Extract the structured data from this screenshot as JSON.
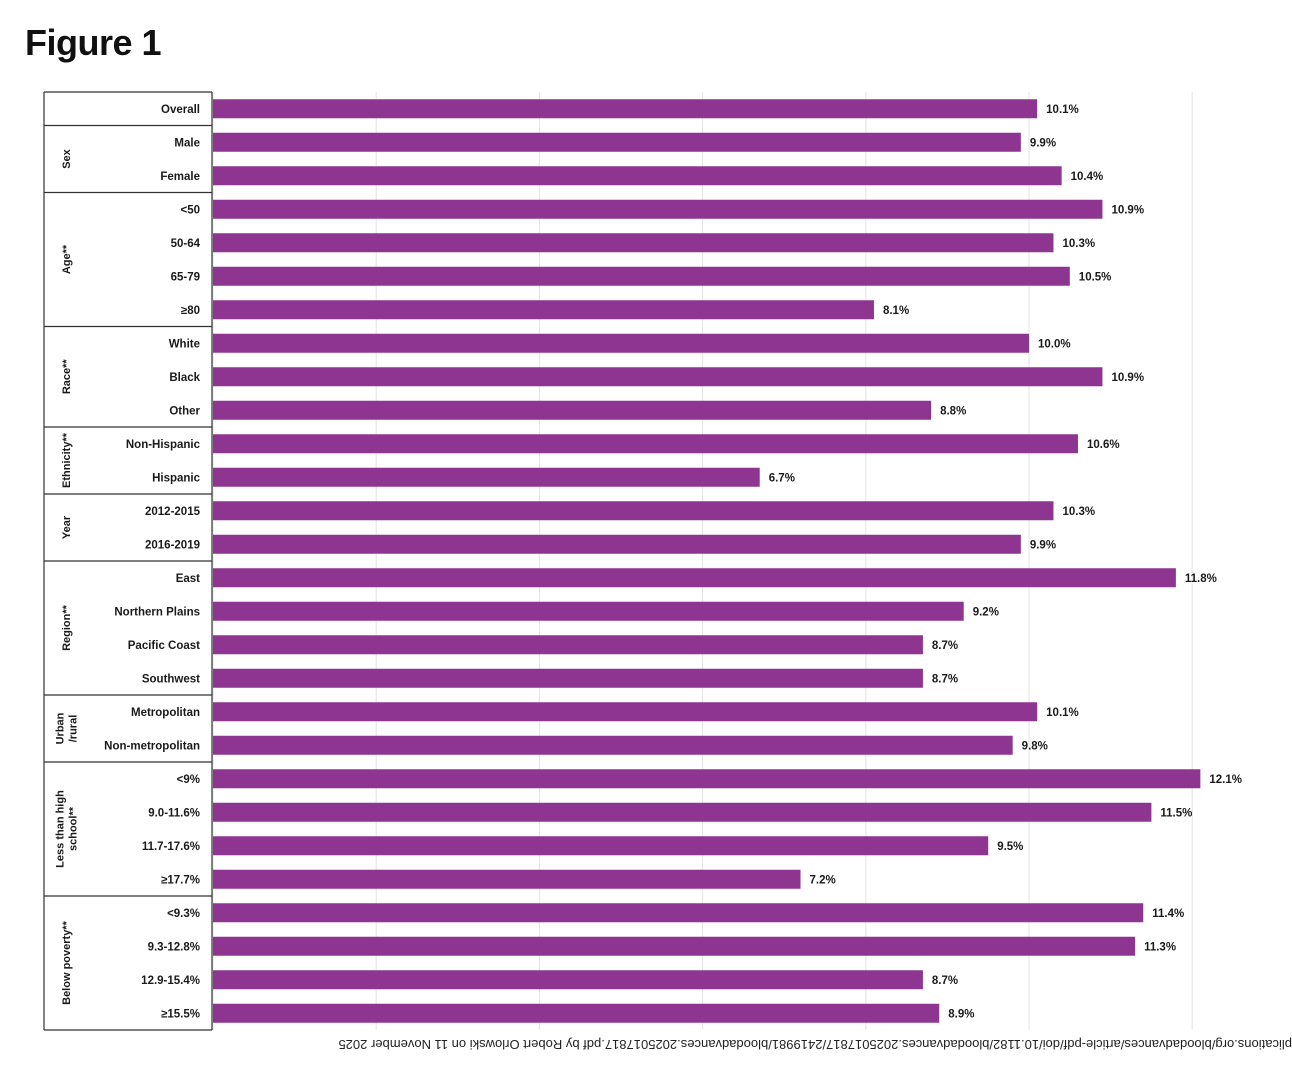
{
  "figure": {
    "title": "Figure 1",
    "footer_watermark": "plications.org/bloodadvances/article-pdf/doi/10.1182/bloodadvances.2025017817/2419981/bloodadvances.2025017817.pdf by Robert Orlowski on 11 November 2025"
  },
  "chart_data": {
    "type": "bar",
    "orientation": "horizontal",
    "xlim": [
      0,
      12.5
    ],
    "grid": true,
    "bar_color": "#8e3591",
    "value_unit": "%",
    "groups": [
      {
        "name": "",
        "categories": [
          "Overall"
        ],
        "values": [
          10.1
        ]
      },
      {
        "name": "Sex",
        "categories": [
          "Male",
          "Female"
        ],
        "values": [
          9.9,
          10.4
        ]
      },
      {
        "name": "Age**",
        "categories": [
          "<50",
          "50-64",
          "65-79",
          "≥80"
        ],
        "values": [
          10.9,
          10.3,
          10.5,
          8.1
        ]
      },
      {
        "name": "Race**",
        "categories": [
          "White",
          "Black",
          "Other"
        ],
        "values": [
          10.0,
          10.9,
          8.8
        ]
      },
      {
        "name": "Ethnicity**",
        "categories": [
          "Non-Hispanic",
          "Hispanic"
        ],
        "values": [
          10.6,
          6.7
        ]
      },
      {
        "name": "Year",
        "categories": [
          "2012-2015",
          "2016-2019"
        ],
        "values": [
          10.3,
          9.9
        ]
      },
      {
        "name": "Region**",
        "categories": [
          "East",
          "Northern Plains",
          "Pacific Coast",
          "Southwest"
        ],
        "values": [
          11.8,
          9.2,
          8.7,
          8.7
        ]
      },
      {
        "name": "Urban\n/rural",
        "categories": [
          "Metropolitan",
          "Non-metropolitan"
        ],
        "values": [
          10.1,
          9.8
        ]
      },
      {
        "name": "Less than high\nschool**",
        "categories": [
          "<9%",
          "9.0-11.6%",
          "11.7-17.6%",
          "≥17.7%"
        ],
        "values": [
          12.1,
          11.5,
          9.5,
          7.2
        ]
      },
      {
        "name": "Below poverty**",
        "categories": [
          "<9.3%",
          "9.3-12.8%",
          "12.9-15.4%",
          "≥15.5%"
        ],
        "values": [
          11.4,
          11.3,
          8.7,
          8.9
        ]
      }
    ],
    "value_labels": [
      "10.1%",
      "9.9%",
      "10.4%",
      "10.9%",
      "10.3%",
      "10.5%",
      "8.1%",
      "10.0%",
      "10.9%",
      "8.8%",
      "10.6%",
      "6.7%",
      "10.3%",
      "9.9%",
      "11.8%",
      "9.2%",
      "8.7%",
      "8.7%",
      "10.1%",
      "9.8%",
      "12.1%",
      "11.5%",
      "9.5%",
      "7.2%",
      "11.4%",
      "11.3%",
      "8.7%",
      "8.9%"
    ]
  }
}
